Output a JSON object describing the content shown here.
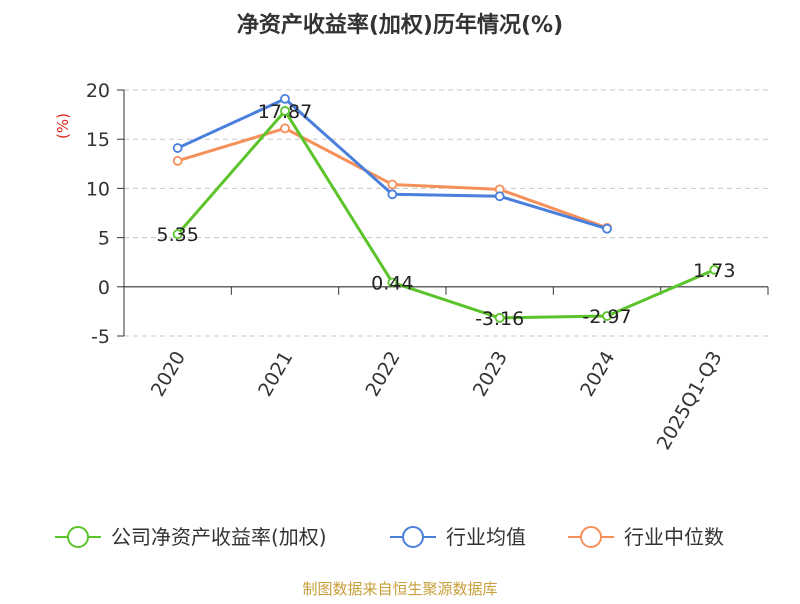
{
  "chart_data": {
    "type": "line",
    "title": "净资产收益率(加权)历年情况(%)",
    "ylabel": "(%)",
    "xlabel": "",
    "categories": [
      "2020",
      "2021",
      "2022",
      "2023",
      "2024",
      "2025Q1-Q3"
    ],
    "ylim": [
      -5,
      20
    ],
    "yticks": [
      20,
      15,
      10,
      5,
      0,
      -5
    ],
    "grid": true,
    "legend_position": "bottom",
    "series": [
      {
        "name": "公司净资产收益率(加权)",
        "color": "#5cc42b",
        "values": [
          5.35,
          17.87,
          0.44,
          -3.16,
          -2.97,
          1.73
        ],
        "labels": [
          "5.35",
          "17.87",
          "0.44",
          "-3.16",
          "-2.97",
          "1.73"
        ]
      },
      {
        "name": "行业均值",
        "color": "#4a7fdc",
        "values": [
          14.1,
          19.1,
          9.4,
          9.2,
          5.9,
          null
        ]
      },
      {
        "name": "行业中位数",
        "color": "#f5905a",
        "values": [
          12.8,
          16.1,
          10.4,
          9.9,
          6.0,
          null
        ]
      }
    ],
    "source": "制图数据来自恒生聚源数据库"
  }
}
